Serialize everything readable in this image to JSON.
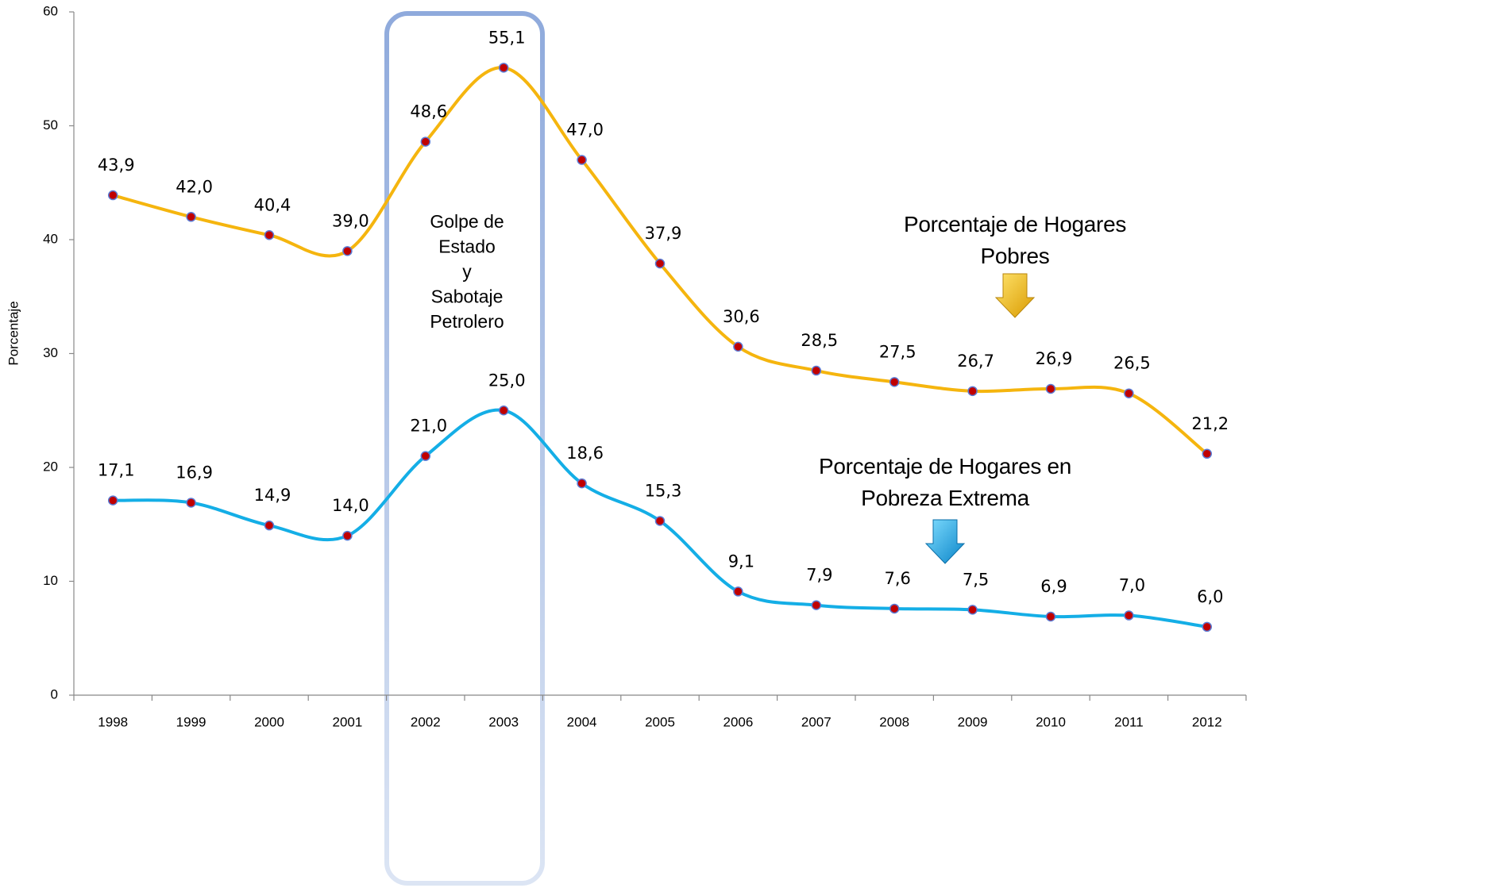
{
  "chart_data": {
    "type": "line",
    "y_label": "Porcentaje",
    "categories": [
      "1998",
      "1999",
      "2000",
      "2001",
      "2002",
      "2003",
      "2004",
      "2005",
      "2006",
      "2007",
      "2008",
      "2009",
      "2010",
      "2011",
      "2012"
    ],
    "series": [
      {
        "name": "Porcentaje de Hogares Pobres",
        "color": "#F5B50E",
        "values": [
          43.9,
          42.0,
          40.4,
          39.0,
          48.6,
          55.1,
          47.0,
          37.9,
          30.6,
          28.5,
          27.5,
          26.7,
          26.9,
          26.5,
          21.2
        ],
        "value_labels": [
          "43,9",
          "42,0",
          "40,4",
          "39,0",
          "48,6",
          "55,1",
          "47,0",
          "37,9",
          "30,6",
          "28,5",
          "27,5",
          "26,7",
          "26,9",
          "26,5",
          "21,2"
        ]
      },
      {
        "name": "Porcentaje de Hogares en Pobreza Extrema",
        "color": "#14AEE6",
        "values": [
          17.1,
          16.9,
          14.9,
          14.0,
          21.0,
          25.0,
          18.6,
          15.3,
          9.1,
          7.9,
          7.6,
          7.5,
          6.9,
          7.0,
          6.0
        ],
        "value_labels": [
          "17,1",
          "16,9",
          "14,9",
          "14,0",
          "21,0",
          "25,0",
          "18,6",
          "15,3",
          "9,1",
          "7,9",
          "7,6",
          "7,5",
          "6,9",
          "7,0",
          "6,0"
        ]
      }
    ],
    "annotation": [
      "Golpe de",
      "Estado",
      "y",
      "Sabotaje",
      "Petrolero"
    ],
    "ylim": [
      0,
      60
    ],
    "yticks": [
      0,
      10,
      20,
      30,
      40,
      50,
      60
    ],
    "grid": false
  }
}
